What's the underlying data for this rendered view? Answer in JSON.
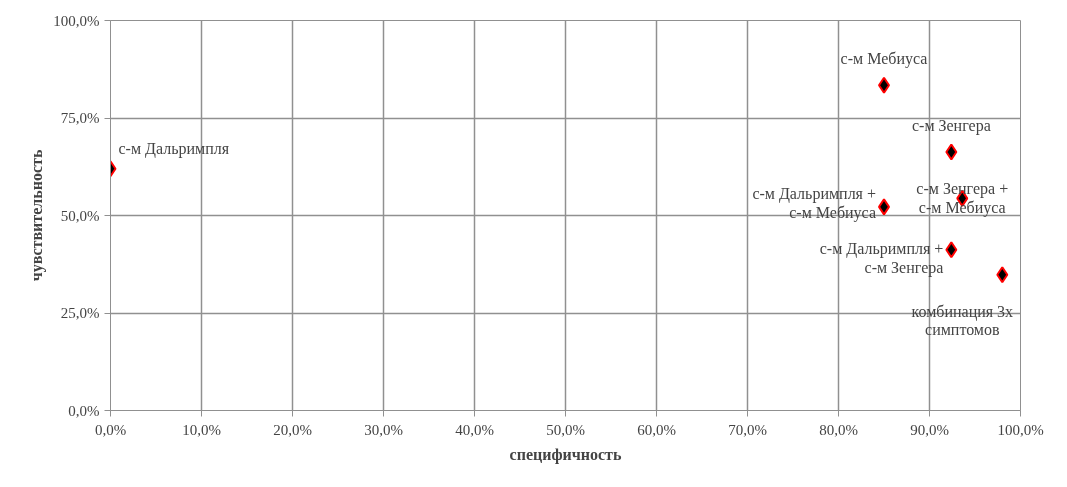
{
  "chart_data": {
    "type": "scatter",
    "xlabel": "специфичность",
    "ylabel": "чувствительность",
    "x": [
      0,
      85.0,
      92.4,
      85.0,
      93.6,
      92.4,
      98.0
    ],
    "series": [
      {
        "color": "#000000",
        "values": [
          62.0,
          83.4,
          66.3,
          52.2,
          54.4,
          41.2,
          34.8
        ]
      }
    ],
    "marker": "diamond",
    "grid": true,
    "xlim": [
      0,
      100
    ],
    "ylim": [
      0,
      100
    ],
    "xticks": [
      {
        "value": 0,
        "label": "0,0%"
      },
      {
        "value": 10,
        "label": "10,0%"
      },
      {
        "value": 20,
        "label": "20,0%"
      },
      {
        "value": 30,
        "label": "30,0%"
      },
      {
        "value": 40,
        "label": "40,0%"
      },
      {
        "value": 50,
        "label": "50,0%"
      },
      {
        "value": 60,
        "label": "60,0%"
      },
      {
        "value": 70,
        "label": "70,0%"
      },
      {
        "value": 80,
        "label": "80,0%"
      },
      {
        "value": 90,
        "label": "90,0%"
      },
      {
        "value": 100,
        "label": "100,0%"
      }
    ],
    "yticks": [
      {
        "value": 0,
        "label": "0,0%"
      },
      {
        "value": 25,
        "label": "25,0%"
      },
      {
        "value": 50,
        "label": "50,0%"
      },
      {
        "value": 75,
        "label": "75,0%"
      },
      {
        "value": 100,
        "label": "100,0%"
      }
    ],
    "annotations": [
      {
        "text": "с-м Дальримпля",
        "x": 0,
        "y": 62.0
      },
      {
        "text": "с-м Мебиуса",
        "x": 85.0,
        "y": 83.4
      },
      {
        "text": "с-м Зенгера",
        "x": 92.4,
        "y": 66.3
      },
      {
        "text": "с-м Дальримпля +\nс-м Мебиуса",
        "x": 85.0,
        "y": 52.2
      },
      {
        "text": "с-м Зенгера +\nс-м Мебиуса",
        "x": 93.6,
        "y": 54.4
      },
      {
        "text": "с-м Дальримпля +\nс-м Зенгера",
        "x": 92.4,
        "y": 41.2
      },
      {
        "text": "комбинация 3х\nсимптомов",
        "x": 98.0,
        "y": 34.8
      }
    ]
  }
}
